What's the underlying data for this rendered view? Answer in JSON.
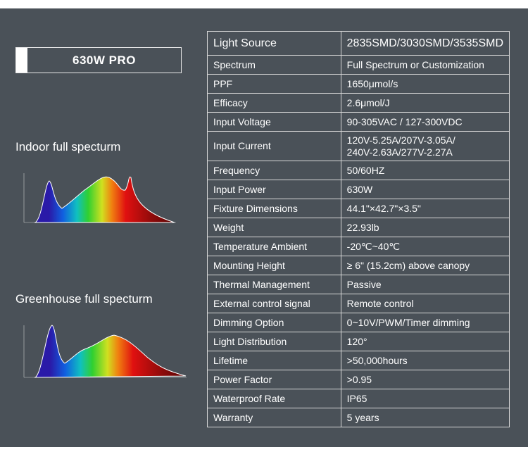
{
  "header": {
    "badge": "630W PRO"
  },
  "spectra": [
    {
      "label": "Indoor full specturm"
    },
    {
      "label": "Greenhouse full specturm"
    }
  ],
  "table": {
    "rows": [
      [
        "Light Source",
        "2835SMD/3030SMD/3535SMD"
      ],
      [
        "Spectrum",
        "Full Spectrum or Customization"
      ],
      [
        "PPF",
        "1650μmol/s"
      ],
      [
        "Efficacy",
        "2.6μmol/J"
      ],
      [
        "Input Voltage",
        "90-305VAC / 127-300VDC"
      ],
      [
        "Input Current",
        [
          "120V-5.25A/207V-3.05A/",
          "240V-2.63A/277V-2.27A"
        ]
      ],
      [
        "Frequency",
        "50/60HZ"
      ],
      [
        "Input Power",
        "630W"
      ],
      [
        "Fixture Dimensions",
        "44.1\"×42.7\"×3.5\""
      ],
      [
        "Weight",
        "22.93lb"
      ],
      [
        "Temperature Ambient",
        "-20℃~40℃"
      ],
      [
        "Mounting Height",
        "≥ 6\" (15.2cm) above canopy"
      ],
      [
        "Thermal Management",
        "Passive"
      ],
      [
        "External control signal",
        "Remote control"
      ],
      [
        "Dimming Option",
        "0~10V/PWM/Timer dimming"
      ],
      [
        "Light Distribution",
        "120°"
      ],
      [
        "Lifetime",
        ">50,000hours"
      ],
      [
        "Power Factor",
        ">0.95"
      ],
      [
        "Waterproof Rate",
        "IP65"
      ],
      [
        "Warranty",
        "5 years"
      ]
    ]
  }
}
